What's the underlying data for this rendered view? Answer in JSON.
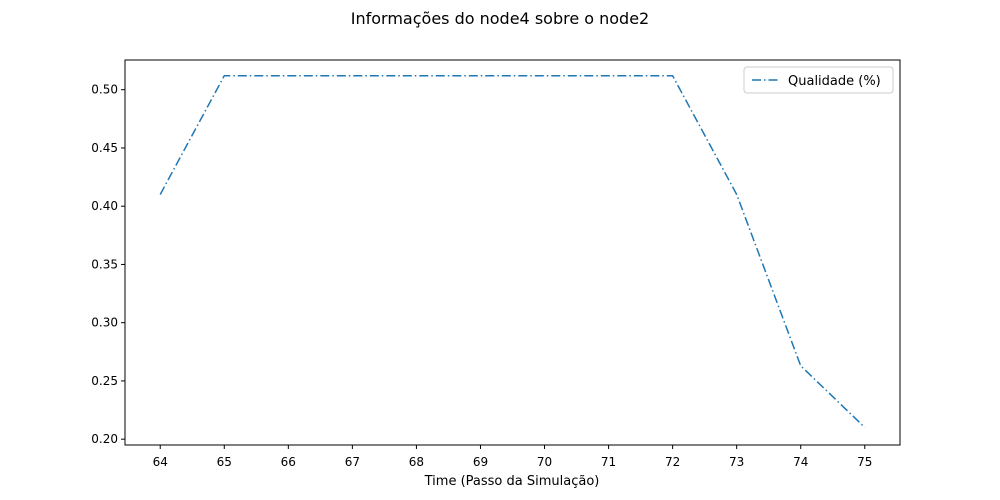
{
  "chart_data": {
    "type": "line",
    "title": "Informações do node4 sobre o node2",
    "xlabel": "Time (Passo da Simulação)",
    "ylabel": "",
    "xlim": [
      63.45,
      75.55
    ],
    "ylim": [
      0.195,
      0.5255
    ],
    "xticks": [
      64,
      65,
      66,
      67,
      68,
      69,
      70,
      71,
      72,
      73,
      74,
      75
    ],
    "yticks": [
      0.2,
      0.25,
      0.3,
      0.35,
      0.4,
      0.45,
      0.5
    ],
    "ytick_labels": [
      "0.20",
      "0.25",
      "0.30",
      "0.35",
      "0.40",
      "0.45",
      "0.50"
    ],
    "grid": false,
    "legend_position": "top-right",
    "series": [
      {
        "name": "Qualidade (%)",
        "color": "#1f77b4",
        "line_style": "dash-dot",
        "x": [
          64,
          65,
          66,
          67,
          68,
          69,
          70,
          71,
          72,
          73,
          74,
          75
        ],
        "values": [
          0.41,
          0.512,
          0.512,
          0.512,
          0.512,
          0.512,
          0.512,
          0.512,
          0.512,
          0.41,
          0.263,
          0.21
        ]
      }
    ]
  }
}
